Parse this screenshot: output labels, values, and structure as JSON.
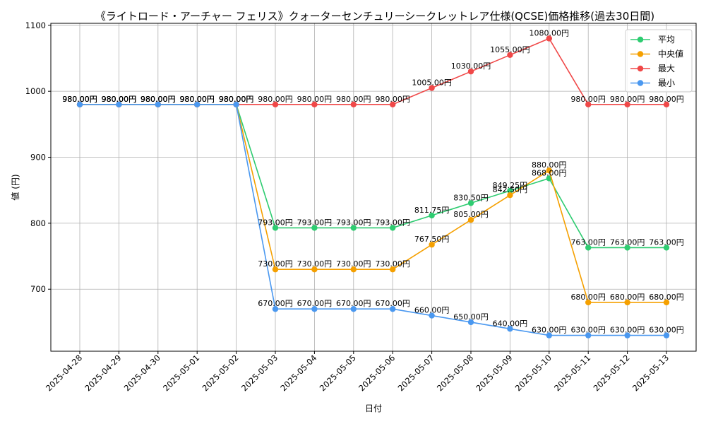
{
  "chart_data": {
    "type": "line",
    "title": "《ライトロード・アーチャー フェリス》クォーターセンチュリーシークレットレア仕様(QCSE)価格推移(過去30日間)",
    "xlabel": "日付",
    "ylabel": "値 (円)",
    "ylim": [
      606,
      1103
    ],
    "yticks": [
      700,
      800,
      900,
      1000,
      1100
    ],
    "grid": true,
    "legend_position": "top-right",
    "value_suffix": "円",
    "categories": [
      "2025-04-28",
      "2025-04-29",
      "2025-04-30",
      "2025-05-01",
      "2025-05-02",
      "2025-05-03",
      "2025-05-04",
      "2025-05-05",
      "2025-05-06",
      "2025-05-07",
      "2025-05-08",
      "2025-05-09",
      "2025-05-10",
      "2025-05-11",
      "2025-05-12",
      "2025-05-13"
    ],
    "series": [
      {
        "name": "平均",
        "color": "#2ecc71",
        "values": [
          980,
          980,
          980,
          980,
          980,
          793,
          793,
          793,
          793,
          811.75,
          830.5,
          849.25,
          868,
          763,
          763,
          763
        ],
        "labels": [
          "980.00円",
          "980.00円",
          "980.00円",
          "980.00円",
          "980.00円",
          "793.00円",
          "793.00円",
          "793.00円",
          "793.00円",
          "811.75円",
          "830.50円",
          "849.25円",
          "868.00円",
          "763.00円",
          "763.00円",
          "763.00円"
        ]
      },
      {
        "name": "中央値",
        "color": "#f5a000",
        "values": [
          980,
          980,
          980,
          980,
          980,
          730,
          730,
          730,
          730,
          767.5,
          805,
          842.5,
          880,
          680,
          680,
          680
        ],
        "labels": [
          "980.00円",
          "980.00円",
          "980.00円",
          "980.00円",
          "980.00円",
          "730.00円",
          "730.00円",
          "730.00円",
          "730.00円",
          "767.50円",
          "805.00円",
          "842.50円",
          "880.00円",
          "680.00円",
          "680.00円",
          "680.00円"
        ]
      },
      {
        "name": "最大",
        "color": "#f04848",
        "values": [
          980,
          980,
          980,
          980,
          980,
          980,
          980,
          980,
          980,
          1005,
          1030,
          1055,
          1080,
          980,
          980,
          980
        ],
        "labels": [
          "980.00円",
          "980.00円",
          "980.00円",
          "980.00円",
          "980.00円",
          "980.00円",
          "980.00円",
          "980.00円",
          "980.00円",
          "1005.00円",
          "1030.00円",
          "1055.00円",
          "1080.00円",
          "980.00円",
          "980.00円",
          "980.00円"
        ]
      },
      {
        "name": "最小",
        "color": "#4a98f0",
        "values": [
          980,
          980,
          980,
          980,
          980,
          670,
          670,
          670,
          670,
          660,
          650,
          640,
          630,
          630,
          630,
          630
        ],
        "labels": [
          "980.00円",
          "980.00円",
          "980.00円",
          "980.00円",
          "980.00円",
          "670.00円",
          "670.00円",
          "670.00円",
          "670.00円",
          "660.00円",
          "650.00円",
          "640.00円",
          "630.00円",
          "630.00円",
          "630.00円",
          "630.00円"
        ]
      }
    ]
  }
}
